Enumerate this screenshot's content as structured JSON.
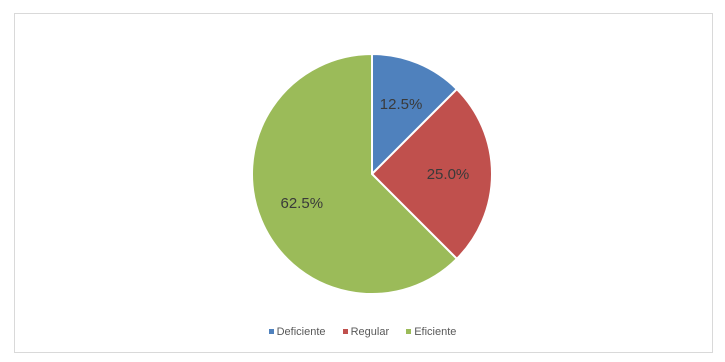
{
  "chart_data": {
    "type": "pie",
    "categories": [
      "Deficiente",
      "Regular",
      "Eficiente"
    ],
    "values": [
      12.5,
      25.0,
      62.5
    ],
    "data_labels": [
      "12.5%",
      "25.0%",
      "62.5%"
    ],
    "colors": [
      "#4f81bd",
      "#c0504d",
      "#9bbb59"
    ],
    "legend": "bottom",
    "start_angle": "top",
    "direction": "clockwise"
  }
}
